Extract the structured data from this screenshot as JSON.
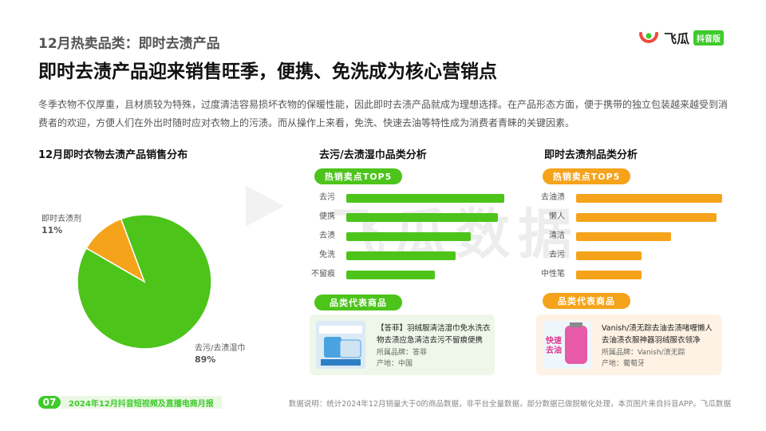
{
  "header": {
    "supertitle": "12月热卖品类：即时去渍产品",
    "title": "即时去渍产品迎来销售旺季，便携、免洗成为核心营销点",
    "description": "冬季衣物不仅厚重，且材质较为特殊，过度清洁容易损坏衣物的保暖性能，因此即时去渍产品就成为理想选择。在产品形态方面，便于携带的独立包装越来越受到消费者的欢迎，方便人们在外出时随时应对衣物上的污渍。而从操作上来看，免洗、快速去油等特性成为消费者青睐的关键因素。"
  },
  "logo": {
    "name": "飞瓜",
    "badge": "抖音版",
    "icon": "feigua-logo-icon"
  },
  "watermark": "飞瓜数据",
  "colors": {
    "green": "#4cc41a",
    "orange": "#f5a31a",
    "brand": "#3ecb2b"
  },
  "chart_data": [
    {
      "type": "pie",
      "title": "12月即时衣物去渍产品销售分布",
      "slices": [
        {
          "name": "去污/去渍湿巾",
          "value": 89,
          "label": "89%",
          "color": "#4cc41a"
        },
        {
          "name": "即时去渍剂",
          "value": 11,
          "label": "11%",
          "color": "#f5a31a"
        }
      ]
    },
    {
      "type": "bar",
      "title": "去污/去渍湿巾品类分析",
      "subtitle": "热销卖点TOP5",
      "orientation": "horizontal",
      "categories": [
        "去污",
        "便携",
        "去渍",
        "免洗",
        "不留痕"
      ],
      "values": [
        100,
        96,
        79,
        69,
        56
      ],
      "color": "#4cc41a"
    },
    {
      "type": "bar",
      "title": "即时去渍剂品类分析",
      "subtitle": "热销卖点TOP5",
      "orientation": "horizontal",
      "categories": [
        "去油渍",
        "懒人",
        "清洁",
        "去污",
        "中性笔"
      ],
      "values": [
        100,
        96,
        65,
        45,
        45
      ],
      "color": "#f5a31a"
    }
  ],
  "products": [
    {
      "section_label": "品类代表商品",
      "name": "【答菲】羽绒服清洁湿巾免水洗衣物去渍应急清洁去污不留痕便携",
      "brand": "所属品牌：答菲",
      "origin": "产地：中国",
      "image_icon": "wet-wipes-product-icon"
    },
    {
      "section_label": "品类代表商品",
      "name": "Vanish/渍无踪去油去渍啫喱懒人去油渍衣服神器羽绒服衣领净",
      "brand": "所属品牌：Vanish/渍无踪",
      "origin": "产地：葡萄牙",
      "image_icon": "stain-remover-bottle-icon",
      "image_text": "快速去油"
    }
  ],
  "footer": {
    "page": "07",
    "report": "2024年12月抖音短视频及直播电商月报",
    "note": "数据说明：统计2024年12月销量大于0的商品数据，非平台全量数据，部分数据已做脱敏化处理，本页图片来自抖音APP。飞瓜数据"
  }
}
